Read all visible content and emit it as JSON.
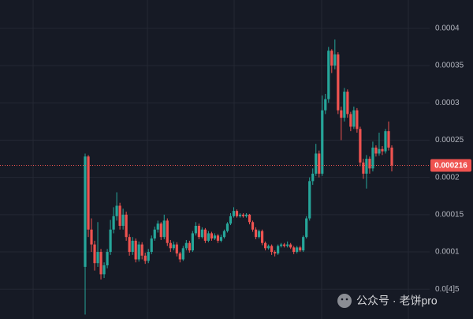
{
  "chart_data": {
    "type": "candlestick",
    "ylim": [
      1e-05,
      0.000438
    ],
    "yticks": [
      0.0004,
      0.00035,
      0.0003,
      0.00025,
      0.0002,
      0.00015,
      0.0001,
      {
        "value": 5e-05,
        "label": "0.0[4]5"
      }
    ],
    "grid": true,
    "up_color": "#26a69a",
    "down_color": "#ef5350",
    "open": [
      8e-05,
      0.000228,
      0.00013,
      0.00011,
      8.5e-05,
      0.0001,
      7e-05,
      8.2e-05,
      0.0001,
      0.00013,
      0.000148,
      0.000162,
      0.000135,
      0.00015,
      0.00012,
      0.0001,
      0.000115,
      9e-05,
      0.00011,
      9.5e-05,
      8.8e-05,
      0.0001,
      0.000118,
      0.00013,
      0.000138,
      0.00012,
      0.000142,
      0.000112,
      0.000105,
      0.00011,
      9.8e-05,
      9e-05,
      0.000105,
      0.000112,
      0.000102,
      0.000125,
      0.000135,
      0.00012,
      0.00013,
      0.000115,
      0.000125,
      0.000118,
      0.000122,
      0.000115,
      0.00012,
      0.000128,
      0.000138,
      0.000148,
      0.000155,
      0.000148,
      0.00015,
      0.000148,
      0.00015,
      0.00014,
      0.00013,
      0.00012,
      0.000128,
      0.000112,
      0.000105,
      0.000108,
      0.0001,
      9.8e-05,
      0.000108,
      0.00011,
      0.000108,
      0.00011,
      0.000106,
      0.0001,
      0.000106,
      0.000102,
      0.00012,
      0.000145,
      0.000195,
      0.000205,
      0.000232,
      0.000205,
      0.00029,
      0.000305,
      0.00037,
      0.00035,
      0.000365,
      0.00029,
      0.00028,
      0.000315,
      0.000285,
      0.000268,
      0.00029,
      0.000265,
      0.00022,
      0.000205,
      0.000225,
      0.000212,
      0.00024,
      0.000232,
      0.000238,
      0.000235,
      0.000262,
      0.00024
    ],
    "high": [
      0.000232,
      0.00023,
      0.000145,
      0.000115,
      0.00014,
      0.000104,
      8.6e-05,
      0.000104,
      0.000143,
      0.00016,
      0.00018,
      0.000166,
      0.000158,
      0.000154,
      0.000124,
      0.00012,
      0.000118,
      0.000114,
      0.000113,
      9.9e-05,
      0.000104,
      0.000122,
      0.000134,
      0.000142,
      0.00014,
      0.00015,
      0.000145,
      0.000116,
      0.000114,
      0.000113,
      0.0001,
      0.000108,
      0.000116,
      0.000115,
      0.000128,
      0.00014,
      0.000138,
      0.000133,
      0.000132,
      0.000128,
      0.000127,
      0.000125,
      0.000124,
      0.000123,
      0.00013,
      0.00014,
      0.000152,
      0.00016,
      0.000157,
      0.000152,
      0.000152,
      0.000152,
      0.000151,
      0.000142,
      0.000133,
      0.00013,
      0.00013,
      0.000114,
      0.00011,
      0.00011,
      0.000102,
      0.00011,
      0.000112,
      0.000112,
      0.000114,
      0.000112,
      0.000108,
      0.000108,
      0.000108,
      0.000122,
      0.000148,
      0.0002,
      0.000212,
      0.000245,
      0.000236,
      0.00031,
      0.000312,
      0.000375,
      0.000372,
      0.000385,
      0.000368,
      0.000295,
      0.00032,
      0.000318,
      0.000288,
      0.000295,
      0.000293,
      0.000268,
      0.000225,
      0.00023,
      0.000228,
      0.000248,
      0.000243,
      0.00026,
      0.000242,
      0.000265,
      0.000275,
      0.000243
    ],
    "low": [
      1.6e-05,
      0.00012,
      0.0001,
      7.5e-05,
      8e-05,
      6.3e-05,
      6.5e-05,
      7.8e-05,
      9.6e-05,
      0.000125,
      0.000142,
      0.00013,
      0.00013,
      0.000115,
      9.5e-05,
      9.6e-05,
      8.6e-05,
      8.7e-05,
      9e-05,
      8.4e-05,
      8.5e-05,
      9.7e-05,
      0.000115,
      0.000126,
      0.000116,
      0.000117,
      0.000108,
      0.0001,
      0.000102,
      9.4e-05,
      8.6e-05,
      8.8e-05,
      0.000102,
      9.9e-05,
      0.0001,
      0.000122,
      0.000117,
      0.000118,
      0.000112,
      0.000113,
      0.000115,
      0.000116,
      0.000112,
      0.000113,
      0.000118,
      0.000126,
      0.000136,
      0.000146,
      0.000146,
      0.000146,
      0.000146,
      0.000146,
      0.000137,
      0.000127,
      0.000117,
      0.000118,
      0.000109,
      0.000102,
      0.000103,
      9.6e-05,
      9.4e-05,
      9.6e-05,
      0.000106,
      0.000106,
      0.000106,
      0.000104,
      9.7e-05,
      9.8e-05,
      0.0001,
      0.0001,
      0.000118,
      0.000142,
      0.00019,
      0.000202,
      0.0002,
      0.000202,
      0.000285,
      0.0003,
      0.00034,
      0.000345,
      0.000285,
      0.00025,
      0.000275,
      0.00028,
      0.000262,
      0.000265,
      0.00026,
      0.000215,
      0.000198,
      0.000185,
      0.000205,
      0.000208,
      0.000228,
      0.000229,
      0.00023,
      0.000232,
      0.000236,
      0.000208
    ],
    "close": [
      0.000228,
      0.00013,
      0.00011,
      8.5e-05,
      0.0001,
      7e-05,
      8.2e-05,
      0.0001,
      0.00013,
      0.000148,
      0.000162,
      0.000135,
      0.00015,
      0.00012,
      0.0001,
      0.000115,
      9e-05,
      0.00011,
      9.5e-05,
      8.8e-05,
      0.0001,
      0.000118,
      0.00013,
      0.000138,
      0.00012,
      0.000142,
      0.000112,
      0.000105,
      0.00011,
      9.8e-05,
      9e-05,
      0.000105,
      0.000112,
      0.000102,
      0.000125,
      0.000135,
      0.00012,
      0.00013,
      0.000115,
      0.000125,
      0.000118,
      0.000122,
      0.000115,
      0.00012,
      0.000128,
      0.000138,
      0.000148,
      0.000155,
      0.000148,
      0.00015,
      0.000148,
      0.00015,
      0.00014,
      0.00013,
      0.00012,
      0.000128,
      0.000112,
      0.000105,
      0.000108,
      0.0001,
      9.8e-05,
      0.000108,
      0.00011,
      0.000108,
      0.00011,
      0.000106,
      0.0001,
      0.000106,
      0.000102,
      0.00012,
      0.000145,
      0.000195,
      0.000205,
      0.000232,
      0.000205,
      0.00029,
      0.000305,
      0.00037,
      0.00035,
      0.000365,
      0.00029,
      0.00028,
      0.000315,
      0.000285,
      0.000268,
      0.00029,
      0.000265,
      0.00022,
      0.000205,
      0.000225,
      0.000212,
      0.00024,
      0.000232,
      0.000238,
      0.000235,
      0.000262,
      0.00024,
      0.000216
    ],
    "last_price": 0.000216,
    "last_price_color": "#ef5350"
  },
  "watermark": "公众号 · 老饼pro"
}
